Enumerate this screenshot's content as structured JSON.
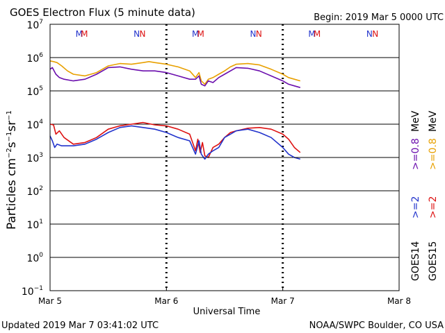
{
  "header": {
    "title": "GOES Electron Flux (5 minute data)",
    "begin": "Begin: 2019 Mar 5 0000 UTC"
  },
  "footer": {
    "updated": "Updated 2019 Mar  7 03:41:02 UTC",
    "credit": "NOAA/SWPC Boulder, CO USA"
  },
  "chart_data": {
    "type": "line",
    "title": "GOES Electron Flux (5 minute data)",
    "xlabel": "Universal Time",
    "ylabel": "Particles cm-2s-1sr-1",
    "y_scale": "log",
    "ylim_exp": [
      -1,
      7
    ],
    "xlim_days": [
      0,
      3
    ],
    "x_ticks": [
      {
        "day": 0,
        "label": "Mar 5"
      },
      {
        "day": 1,
        "label": "Mar 6"
      },
      {
        "day": 2,
        "label": "Mar 7"
      },
      {
        "day": 3,
        "label": "Mar 8"
      }
    ],
    "y_ticks": [
      {
        "exp": 7,
        "label": "7"
      },
      {
        "exp": 6,
        "label": "6"
      },
      {
        "exp": 5,
        "label": "5"
      },
      {
        "exp": 4,
        "label": "4"
      },
      {
        "exp": 3,
        "label": "3"
      },
      {
        "exp": 2,
        "label": "2"
      },
      {
        "exp": 1,
        "label": "1"
      },
      {
        "exp": 0,
        "label": "0"
      },
      {
        "exp": -1,
        "label": "−1"
      }
    ],
    "threshold_exp": 3,
    "markers": [
      {
        "day": 0.25,
        "text": "M",
        "color": "#2233cc"
      },
      {
        "day": 0.295,
        "text": "M",
        "color": "#dd1111"
      },
      {
        "day": 0.745,
        "text": "N",
        "color": "#2233cc"
      },
      {
        "day": 0.795,
        "text": "N",
        "color": "#dd1111"
      },
      {
        "day": 1.25,
        "text": "M",
        "color": "#2233cc"
      },
      {
        "day": 1.295,
        "text": "M",
        "color": "#dd1111"
      },
      {
        "day": 1.745,
        "text": "N",
        "color": "#2233cc"
      },
      {
        "day": 1.795,
        "text": "N",
        "color": "#dd1111"
      },
      {
        "day": 2.25,
        "text": "M",
        "color": "#2233cc"
      },
      {
        "day": 2.295,
        "text": "M",
        "color": "#dd1111"
      },
      {
        "day": 2.745,
        "text": "N",
        "color": "#2233cc"
      },
      {
        "day": 2.795,
        "text": "N",
        "color": "#dd1111"
      }
    ],
    "legend": {
      "satellites": [
        {
          "text": "GOES14",
          "color": "#000000"
        },
        {
          "text": "GOES15",
          "color": "#000000"
        }
      ],
      "energies": [
        {
          "pre": ">=2",
          "color": "#2233cc"
        },
        {
          "pre": ">=2",
          "color": "#dd1111"
        },
        {
          "pre": ">=0.8",
          "color": "#6a0dad"
        },
        {
          "pre": ">=0.8",
          "color": "#e8a000"
        }
      ],
      "unit": "MeV"
    },
    "series": [
      {
        "name": "GOES15 >=0.8 MeV",
        "color": "#e8a000",
        "x": [
          0,
          0.03,
          0.06,
          0.1,
          0.15,
          0.2,
          0.3,
          0.4,
          0.5,
          0.6,
          0.7,
          0.8,
          0.85,
          0.9,
          1.0,
          1.1,
          1.2,
          1.25,
          1.28,
          1.3,
          1.33,
          1.36,
          1.4,
          1.45,
          1.5,
          1.55,
          1.6,
          1.7,
          1.8,
          1.9,
          2.0,
          2.05,
          2.1,
          2.15
        ],
        "y": [
          5.9,
          5.88,
          5.85,
          5.75,
          5.6,
          5.5,
          5.45,
          5.55,
          5.75,
          5.82,
          5.8,
          5.85,
          5.88,
          5.85,
          5.8,
          5.72,
          5.6,
          5.4,
          5.55,
          5.3,
          5.2,
          5.35,
          5.4,
          5.5,
          5.6,
          5.72,
          5.8,
          5.82,
          5.78,
          5.65,
          5.5,
          5.4,
          5.35,
          5.3
        ]
      },
      {
        "name": "GOES14 >=0.8 MeV",
        "color": "#6a0dad",
        "x": [
          0,
          0.02,
          0.05,
          0.08,
          0.12,
          0.2,
          0.3,
          0.4,
          0.5,
          0.6,
          0.7,
          0.8,
          0.9,
          1.0,
          1.1,
          1.2,
          1.25,
          1.28,
          1.3,
          1.33,
          1.36,
          1.4,
          1.45,
          1.5,
          1.6,
          1.7,
          1.8,
          1.9,
          2.0,
          2.05,
          2.1,
          2.15
        ],
        "y": [
          5.65,
          5.7,
          5.5,
          5.4,
          5.35,
          5.3,
          5.35,
          5.5,
          5.7,
          5.72,
          5.65,
          5.6,
          5.6,
          5.55,
          5.45,
          5.35,
          5.35,
          5.45,
          5.2,
          5.15,
          5.3,
          5.25,
          5.4,
          5.5,
          5.7,
          5.68,
          5.6,
          5.45,
          5.3,
          5.2,
          5.15,
          5.1
        ]
      },
      {
        "name": "GOES15 >=2 MeV",
        "color": "#dd1111",
        "x": [
          0,
          0.03,
          0.05,
          0.08,
          0.12,
          0.2,
          0.3,
          0.4,
          0.5,
          0.6,
          0.7,
          0.8,
          0.9,
          1.0,
          1.1,
          1.2,
          1.25,
          1.27,
          1.29,
          1.31,
          1.33,
          1.36,
          1.4,
          1.45,
          1.5,
          1.55,
          1.6,
          1.7,
          1.8,
          1.9,
          2.0,
          2.05,
          2.1,
          2.15
        ],
        "y": [
          4.0,
          3.98,
          3.7,
          3.8,
          3.6,
          3.4,
          3.45,
          3.6,
          3.85,
          3.95,
          4.0,
          4.05,
          3.98,
          3.95,
          3.85,
          3.7,
          3.2,
          3.55,
          3.15,
          3.45,
          3.05,
          3.0,
          3.3,
          3.4,
          3.6,
          3.75,
          3.8,
          3.88,
          3.9,
          3.85,
          3.7,
          3.55,
          3.3,
          3.15
        ]
      },
      {
        "name": "GOES14 >=2 MeV",
        "color": "#2233cc",
        "x": [
          0,
          0.02,
          0.04,
          0.06,
          0.1,
          0.2,
          0.3,
          0.4,
          0.5,
          0.6,
          0.7,
          0.8,
          0.9,
          1.0,
          1.1,
          1.2,
          1.25,
          1.28,
          1.3,
          1.33,
          1.36,
          1.4,
          1.45,
          1.5,
          1.55,
          1.6,
          1.7,
          1.8,
          1.9,
          2.0,
          2.05,
          2.1,
          2.15
        ],
        "y": [
          3.65,
          3.5,
          3.3,
          3.4,
          3.35,
          3.35,
          3.4,
          3.55,
          3.75,
          3.9,
          3.95,
          3.9,
          3.85,
          3.75,
          3.6,
          3.5,
          3.1,
          3.5,
          3.1,
          2.95,
          3.1,
          3.2,
          3.3,
          3.6,
          3.7,
          3.8,
          3.85,
          3.75,
          3.6,
          3.3,
          3.1,
          3.0,
          2.95
        ]
      }
    ]
  }
}
